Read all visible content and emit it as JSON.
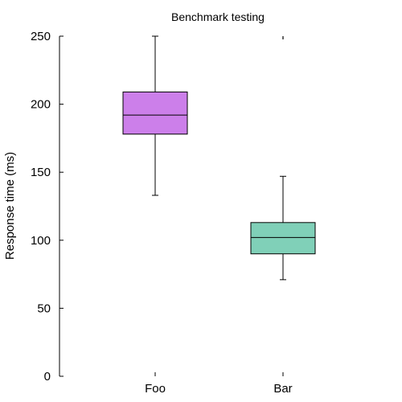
{
  "chart_data": {
    "type": "box",
    "title": "Benchmark testing",
    "xlabel": "",
    "ylabel": "Response time (ms)",
    "ylim": [
      0,
      250
    ],
    "yticks": [
      0,
      50,
      100,
      150,
      200,
      250
    ],
    "grid": false,
    "categories": [
      "Foo",
      "Bar"
    ],
    "boxes": [
      {
        "category": "Foo",
        "whisker_low": 133,
        "q1": 178,
        "median": 192,
        "q3": 209,
        "whisker_high": 250,
        "outliers": [],
        "color": "#cc7fea"
      },
      {
        "category": "Bar",
        "whisker_low": 71,
        "q1": 90,
        "median": 102,
        "q3": 113,
        "whisker_high": 147,
        "outliers": [
          250
        ],
        "color": "#80d0b8"
      }
    ]
  }
}
